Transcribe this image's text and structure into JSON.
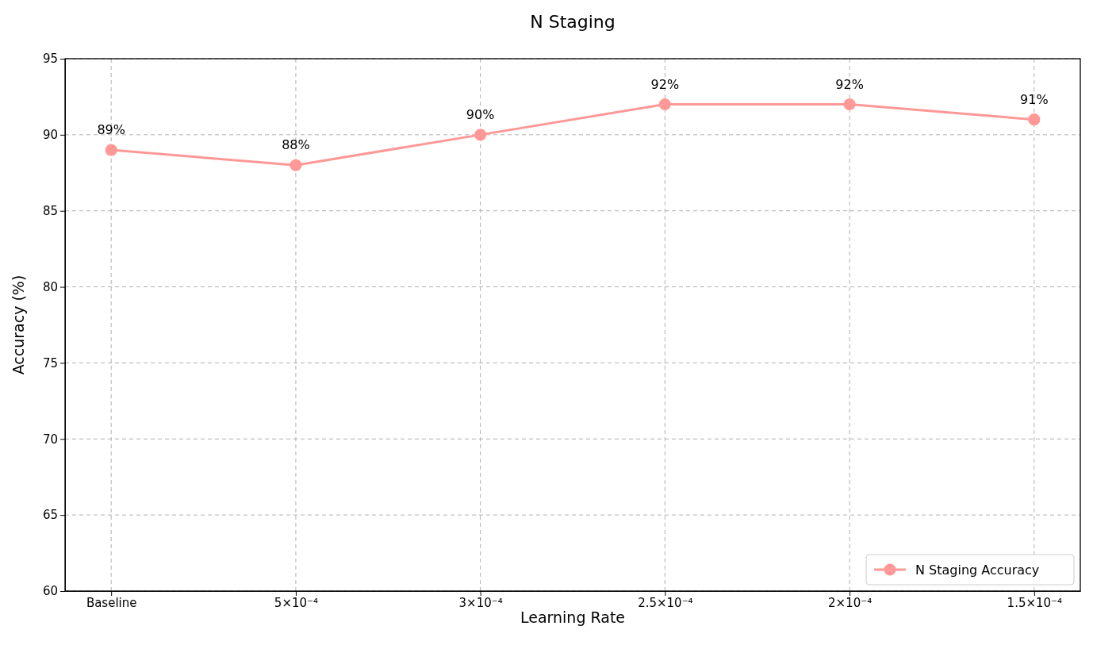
{
  "chart_data": {
    "type": "line",
    "title": "N Staging",
    "xlabel": "Learning Rate",
    "ylabel": "Accuracy (%)",
    "categories": [
      "Baseline",
      "5×10⁻⁴",
      "3×10⁻⁴",
      "2.5×10⁻⁴",
      "2×10⁻⁴",
      "1.5×10⁻⁴"
    ],
    "series": [
      {
        "name": "N Staging Accuracy",
        "color": "#ff9896",
        "values": [
          89,
          88,
          90,
          92,
          92,
          91
        ],
        "value_labels": [
          "89%",
          "88%",
          "90%",
          "92%",
          "92%",
          "91%"
        ]
      }
    ],
    "ylim": [
      60,
      95
    ],
    "yticks": [
      60,
      65,
      70,
      75,
      80,
      85,
      90,
      95
    ],
    "grid": true,
    "legend": "bottom right",
    "marker": "circle",
    "line_style": "solid"
  }
}
